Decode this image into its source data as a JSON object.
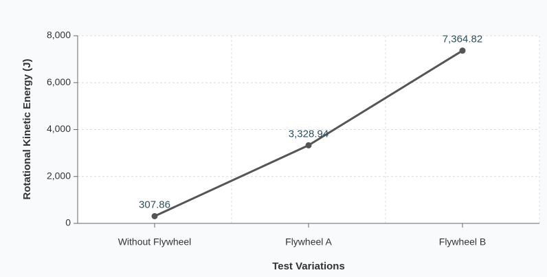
{
  "chart_data": {
    "type": "line",
    "x_label": "Test Variations",
    "y_label": "Rotational Kinetic Energy (J)",
    "categories": [
      "Without Flywheel",
      "Flywheel A",
      "Flywheel B"
    ],
    "values": [
      307.86,
      3328.94,
      7364.82
    ],
    "value_labels": [
      "307.86",
      "3,328.94",
      "7,364.82"
    ],
    "color": "#555555",
    "ylim": [
      0,
      8000
    ],
    "yticks": [
      0,
      {
        "value": 2000,
        "label": "2,000"
      },
      {
        "value": 4000,
        "label": "4,000"
      },
      {
        "value": 6000,
        "label": "6,000"
      },
      {
        "value": 8000,
        "label": "8,000"
      }
    ],
    "grid": true
  }
}
